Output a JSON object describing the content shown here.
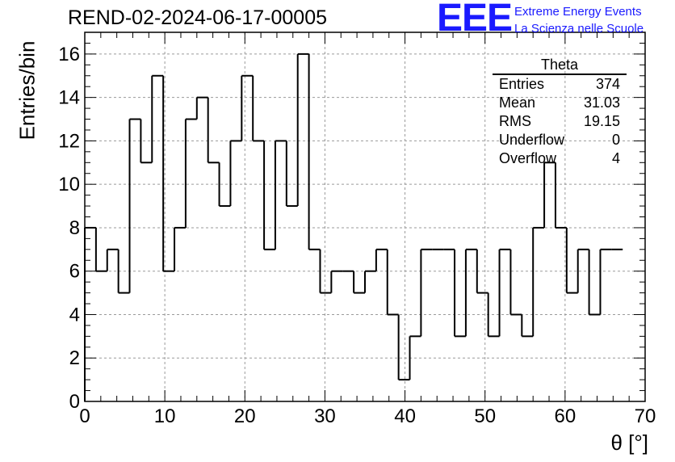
{
  "header": {
    "run_title": "REND-02-2024-06-17-00005",
    "logo_text": "EEE",
    "logo_line1": "Extreme Energy Events",
    "logo_line2": "La Scienza nelle Scuole"
  },
  "stats": {
    "title": "Theta",
    "rows": [
      {
        "label": "Entries",
        "value": "374"
      },
      {
        "label": "Mean",
        "value": "31.03"
      },
      {
        "label": "RMS",
        "value": "19.15"
      },
      {
        "label": "Underflow",
        "value": "0"
      },
      {
        "label": "Overflow",
        "value": "4"
      }
    ]
  },
  "colors": {
    "histogram": "#000000",
    "grid": "#9a9a9a",
    "logo": "#1a1aff"
  },
  "chart_data": {
    "type": "bar",
    "style": "step-histogram",
    "title": "REND-02-2024-06-17-00005",
    "xlabel": "θ [°]",
    "ylabel": "Entries/bin",
    "xlim": [
      0,
      70
    ],
    "ylim": [
      0,
      17
    ],
    "bin_width": 1.4,
    "x_ticks": [
      0,
      10,
      20,
      30,
      40,
      50,
      60,
      70
    ],
    "y_ticks": [
      0,
      2,
      4,
      6,
      8,
      10,
      12,
      14,
      16
    ],
    "grid": true,
    "series": [
      {
        "values": [
          8,
          6,
          7,
          5,
          13,
          11,
          15,
          6,
          8,
          13,
          14,
          11,
          9,
          12,
          15,
          12,
          7,
          12,
          9,
          16,
          7,
          5,
          6,
          6,
          5,
          6,
          7,
          4,
          1,
          3,
          7,
          7,
          7,
          3,
          7,
          5,
          3,
          7,
          4,
          3,
          8,
          11,
          8,
          5,
          7,
          4,
          7,
          7
        ]
      }
    ]
  }
}
